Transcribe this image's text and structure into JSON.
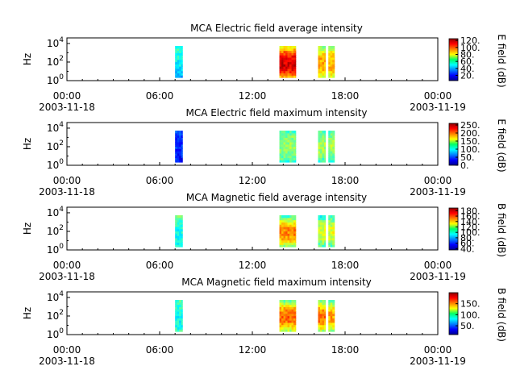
{
  "chart_data": [
    {
      "type": "heatmap",
      "title": "MCA  Electric field average intensity",
      "ylabel": "Hz",
      "ytick_labels": [
        {
          "base": "10",
          "exp": "0"
        },
        {
          "base": "10",
          "exp": "2"
        },
        {
          "base": "10",
          "exp": "4"
        }
      ],
      "yscale": "log",
      "ylim": [
        1,
        40000
      ],
      "xlim": [
        "2003-11-18 00:00",
        "2003-11-19 00:00"
      ],
      "xticks": [
        {
          "label": "00:00",
          "date": "2003-11-18"
        },
        {
          "label": "06:00",
          "date": ""
        },
        {
          "label": "12:00",
          "date": ""
        },
        {
          "label": "18:00",
          "date": ""
        },
        {
          "label": "00:00",
          "date": "2003-11-19"
        }
      ],
      "colorbar": {
        "label": "E field (dB)",
        "range": [
          5,
          125
        ],
        "ticks": [
          "120.",
          "100.",
          "80.",
          "60.",
          "40.",
          "20."
        ]
      },
      "data_segments": [
        {
          "start": "07:00",
          "end": "07:30",
          "dominant": "green-cyan with blue at high frequency"
        },
        {
          "start": "13:45",
          "end": "14:50",
          "dominant": "yellow-orange with red at low frequency"
        },
        {
          "start": "16:15",
          "end": "16:45",
          "dominant": "green-yellow"
        },
        {
          "start": "16:55",
          "end": "17:20",
          "dominant": "green-yellow"
        }
      ]
    },
    {
      "type": "heatmap",
      "title": "MCA  Electric field maximum intensity",
      "ylabel": "Hz",
      "ytick_labels": [
        {
          "base": "10",
          "exp": "0"
        },
        {
          "base": "10",
          "exp": "2"
        },
        {
          "base": "10",
          "exp": "4"
        }
      ],
      "yscale": "log",
      "ylim": [
        1,
        40000
      ],
      "xlim": [
        "2003-11-18 00:00",
        "2003-11-19 00:00"
      ],
      "xticks": [
        {
          "label": "00:00",
          "date": "2003-11-18"
        },
        {
          "label": "06:00",
          "date": ""
        },
        {
          "label": "12:00",
          "date": ""
        },
        {
          "label": "18:00",
          "date": ""
        },
        {
          "label": "00:00",
          "date": "2003-11-19"
        }
      ],
      "colorbar": {
        "label": "E field (dB)",
        "range": [
          0,
          260
        ],
        "ticks": [
          "250.",
          "200.",
          "150.",
          "100.",
          "50.",
          "0."
        ]
      },
      "data_segments": [
        {
          "start": "07:00",
          "end": "07:30",
          "dominant": "blue"
        },
        {
          "start": "13:45",
          "end": "14:50",
          "dominant": "green"
        },
        {
          "start": "16:15",
          "end": "16:45",
          "dominant": "green"
        },
        {
          "start": "16:55",
          "end": "17:20",
          "dominant": "green"
        }
      ]
    },
    {
      "type": "heatmap",
      "title": "MCA  Magnetic field average intensity",
      "ylabel": "Hz",
      "ytick_labels": [
        {
          "base": "10",
          "exp": "0"
        },
        {
          "base": "10",
          "exp": "2"
        },
        {
          "base": "10",
          "exp": "4"
        }
      ],
      "yscale": "log",
      "ylim": [
        1,
        40000
      ],
      "xlim": [
        "2003-11-18 00:00",
        "2003-11-19 00:00"
      ],
      "xticks": [
        {
          "label": "00:00",
          "date": "2003-11-18"
        },
        {
          "label": "06:00",
          "date": ""
        },
        {
          "label": "12:00",
          "date": ""
        },
        {
          "label": "18:00",
          "date": ""
        },
        {
          "label": "00:00",
          "date": "2003-11-19"
        }
      ],
      "colorbar": {
        "label": "B field (dB)",
        "range": [
          35,
          190
        ],
        "ticks": [
          "180.",
          "160.",
          "140.",
          "120.",
          "100.",
          "80.",
          "60.",
          "40."
        ]
      },
      "data_segments": [
        {
          "start": "07:00",
          "end": "07:30",
          "dominant": "green with blue at high frequency"
        },
        {
          "start": "13:45",
          "end": "14:50",
          "dominant": "green-cyan with orange at low frequency"
        },
        {
          "start": "16:15",
          "end": "16:45",
          "dominant": "cyan-green"
        },
        {
          "start": "16:55",
          "end": "17:20",
          "dominant": "cyan-green"
        }
      ]
    },
    {
      "type": "heatmap",
      "title": "MCA  Magnetic field maximum intensity",
      "ylabel": "Hz",
      "ytick_labels": [
        {
          "base": "10",
          "exp": "0"
        },
        {
          "base": "10",
          "exp": "2"
        },
        {
          "base": "10",
          "exp": "4"
        }
      ],
      "yscale": "log",
      "ylim": [
        1,
        40000
      ],
      "xlim": [
        "2003-11-18 00:00",
        "2003-11-19 00:00"
      ],
      "xticks": [
        {
          "label": "00:00",
          "date": "2003-11-18"
        },
        {
          "label": "06:00",
          "date": ""
        },
        {
          "label": "12:00",
          "date": ""
        },
        {
          "label": "18:00",
          "date": ""
        },
        {
          "label": "00:00",
          "date": "2003-11-19"
        }
      ],
      "colorbar": {
        "label": "B field (dB)",
        "range": [
          10,
          200
        ],
        "ticks": [
          "150.",
          "100.",
          "50."
        ]
      },
      "data_segments": [
        {
          "start": "07:00",
          "end": "07:30",
          "dominant": "green with blue at high frequency"
        },
        {
          "start": "13:45",
          "end": "14:50",
          "dominant": "green with orange at low frequency"
        },
        {
          "start": "16:15",
          "end": "16:45",
          "dominant": "green with orange at low frequency"
        },
        {
          "start": "16:55",
          "end": "17:20",
          "dominant": "green with yellow at low frequency"
        }
      ]
    }
  ]
}
